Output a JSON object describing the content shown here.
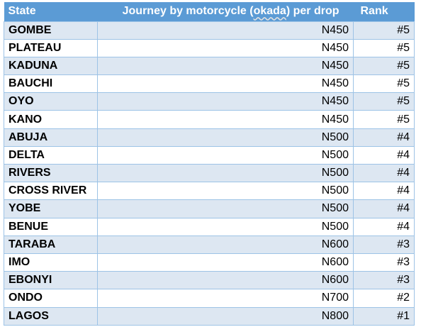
{
  "table": {
    "headers": {
      "state": "State",
      "price_prefix": "Journey by motorcycle (",
      "price_squiggle": "okada",
      "price_suffix": ") per drop",
      "rank": "Rank"
    },
    "rows": [
      {
        "state": "GOMBE",
        "price": "N450",
        "rank": "#5"
      },
      {
        "state": "PLATEAU",
        "price": "N450",
        "rank": "#5"
      },
      {
        "state": "KADUNA",
        "price": "N450",
        "rank": "#5"
      },
      {
        "state": "BAUCHI",
        "price": "N450",
        "rank": "#5"
      },
      {
        "state": "OYO",
        "price": "N450",
        "rank": "#5"
      },
      {
        "state": "KANO",
        "price": "N450",
        "rank": "#5"
      },
      {
        "state": "ABUJA",
        "price": "N500",
        "rank": "#4"
      },
      {
        "state": "DELTA",
        "price": "N500",
        "rank": "#4"
      },
      {
        "state": "RIVERS",
        "price": "N500",
        "rank": "#4"
      },
      {
        "state": "CROSS RIVER",
        "price": "N500",
        "rank": "#4"
      },
      {
        "state": "YOBE",
        "price": "N500",
        "rank": "#4"
      },
      {
        "state": "BENUE",
        "price": "N500",
        "rank": "#4"
      },
      {
        "state": "TARABA",
        "price": "N600",
        "rank": "#3"
      },
      {
        "state": "IMO",
        "price": "N600",
        "rank": "#3"
      },
      {
        "state": "EBONYI",
        "price": "N600",
        "rank": "#3"
      },
      {
        "state": "ONDO",
        "price": "N700",
        "rank": "#2"
      },
      {
        "state": "LAGOS",
        "price": "N800",
        "rank": "#1"
      }
    ]
  },
  "colors": {
    "header_bg": "#5b9bd5",
    "header_text": "#ffffff",
    "band_row": "#dde7f2",
    "plain_row": "#ffffff",
    "grid_line": "#9dc3e6"
  }
}
